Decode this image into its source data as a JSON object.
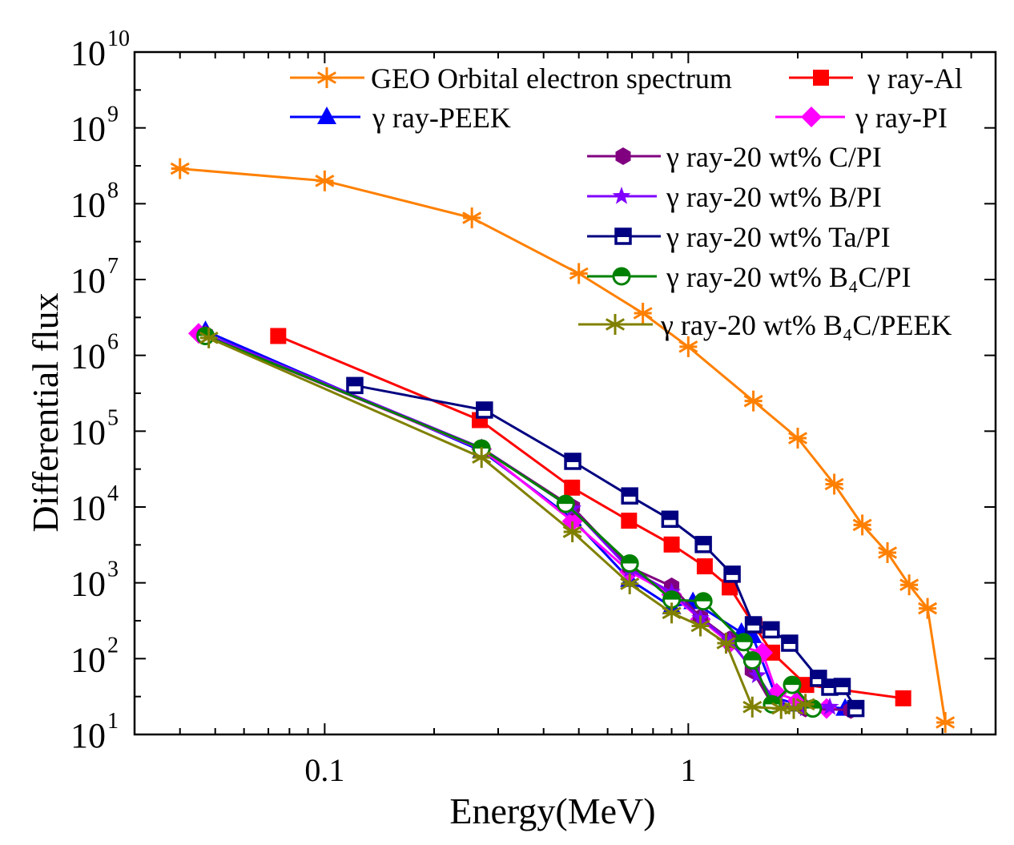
{
  "chart_data": {
    "type": "line",
    "xlabel": "Energy(MeV)",
    "ylabel": "Differential flux",
    "xscale": "log",
    "yscale": "log",
    "xlim": [
      0.03,
      7
    ],
    "ylim": [
      10,
      10000000000
    ],
    "xtick_labels": [
      {
        "value": 0.1,
        "label": "0.1"
      },
      {
        "value": 1,
        "label": "1"
      }
    ],
    "ytick_base": "10",
    "ytick_exponents": [
      "1",
      "2",
      "3",
      "4",
      "5",
      "6",
      "7",
      "8",
      "9",
      "10"
    ],
    "grid": false,
    "legend_placement": "top-right",
    "series": [
      {
        "name": "GEO Orbital electron spectrum",
        "color": "#FF8000",
        "marker": "asterisk",
        "x": [
          0.04,
          0.1,
          0.254,
          0.5,
          0.75,
          1.0,
          1.51,
          2.0,
          2.52,
          3.01,
          3.53,
          4.05,
          4.55,
          5.09
        ],
        "y": [
          290000000.0,
          200000000.0,
          65000000.0,
          12000000.0,
          3600000.0,
          1300000.0,
          250000.0,
          81000.0,
          20000.0,
          5800.0,
          2500.0,
          940,
          460,
          14.4
        ]
      },
      {
        "name": "γ ray-Al",
        "color": "#FF0000",
        "marker": "square",
        "x": [
          0.0745,
          0.267,
          0.479,
          0.687,
          0.9,
          1.11,
          1.3,
          1.52,
          1.7,
          2.11,
          3.9
        ],
        "y": [
          1800000.0,
          140000.0,
          18000.0,
          6600.0,
          3200.0,
          1650.0,
          870,
          270,
          120,
          45,
          30
        ]
      },
      {
        "name": "γ ray-PEEK",
        "color": "#0000FF",
        "marker": "triangle",
        "x": [
          0.047,
          0.27,
          0.48,
          0.69,
          0.9,
          1.03,
          1.4,
          1.5,
          1.75,
          2.0,
          2.7
        ],
        "y": [
          2100000.0,
          55000.0,
          7000,
          1100,
          480,
          560,
          220,
          200,
          30,
          25,
          22
        ]
      },
      {
        "name": "γ ray-PI",
        "color": "#FF00FF",
        "marker": "diamond",
        "x": [
          0.045,
          0.27,
          0.48,
          0.69,
          0.9,
          1.08,
          1.3,
          1.6,
          1.75,
          2.0,
          2.4
        ],
        "y": [
          1950000.0,
          58000.0,
          6500,
          1400,
          700,
          330,
          160,
          120,
          35,
          28,
          22
        ]
      },
      {
        "name": "γ ray-20 wt% C/PI",
        "color": "#800080",
        "marker": "hexagon",
        "x": [
          0.047,
          0.27,
          0.48,
          0.69,
          0.9,
          1.08,
          1.3,
          1.5,
          1.7,
          2.1,
          2.8
        ],
        "y": [
          1900000.0,
          60000.0,
          10000.0,
          1600,
          900,
          350,
          180,
          70,
          25,
          22,
          21
        ]
      },
      {
        "name": "γ ray-20 wt% B/PI",
        "color": "#8000FF",
        "marker": "star",
        "x": [
          0.047,
          0.27,
          0.48,
          0.69,
          0.9,
          1.08,
          1.3,
          1.55,
          1.75,
          2.1,
          2.45
        ],
        "y": [
          1900000.0,
          60000.0,
          9500,
          1500,
          750,
          340,
          170,
          60,
          25,
          22,
          23
        ]
      },
      {
        "name": "γ ray-20 wt% Ta/PI",
        "color": "#000080",
        "marker": "half-square",
        "x": [
          0.121,
          0.275,
          0.481,
          0.69,
          0.89,
          1.1,
          1.32,
          1.51,
          1.69,
          1.9,
          2.28,
          2.45,
          2.65,
          2.89
        ],
        "y": [
          400000.0,
          190000.0,
          40000.0,
          14000.0,
          6900,
          3200,
          1300,
          280,
          240,
          160,
          55,
          42,
          43,
          22
        ]
      },
      {
        "name": "γ ray-20 wt% B₄C/PI",
        "color": "#008000",
        "marker": "half-circle",
        "x": [
          0.047,
          0.27,
          0.46,
          0.69,
          0.9,
          1.1,
          1.42,
          1.5,
          1.7,
          1.93,
          2.2
        ],
        "y": [
          1800000.0,
          59000.0,
          11000.0,
          1800,
          600,
          570,
          165,
          95,
          25,
          45,
          22
        ]
      },
      {
        "name": "γ ray-20 wt% B₄C/PEEK",
        "color": "#808000",
        "marker": "asterisk",
        "x": [
          0.048,
          0.27,
          0.48,
          0.69,
          0.9,
          1.08,
          1.27,
          1.5,
          1.8,
          1.95,
          2.1
        ],
        "y": [
          1700000.0,
          45000.0,
          4700,
          970,
          400,
          270,
          160,
          23,
          22,
          22,
          25
        ]
      }
    ]
  }
}
